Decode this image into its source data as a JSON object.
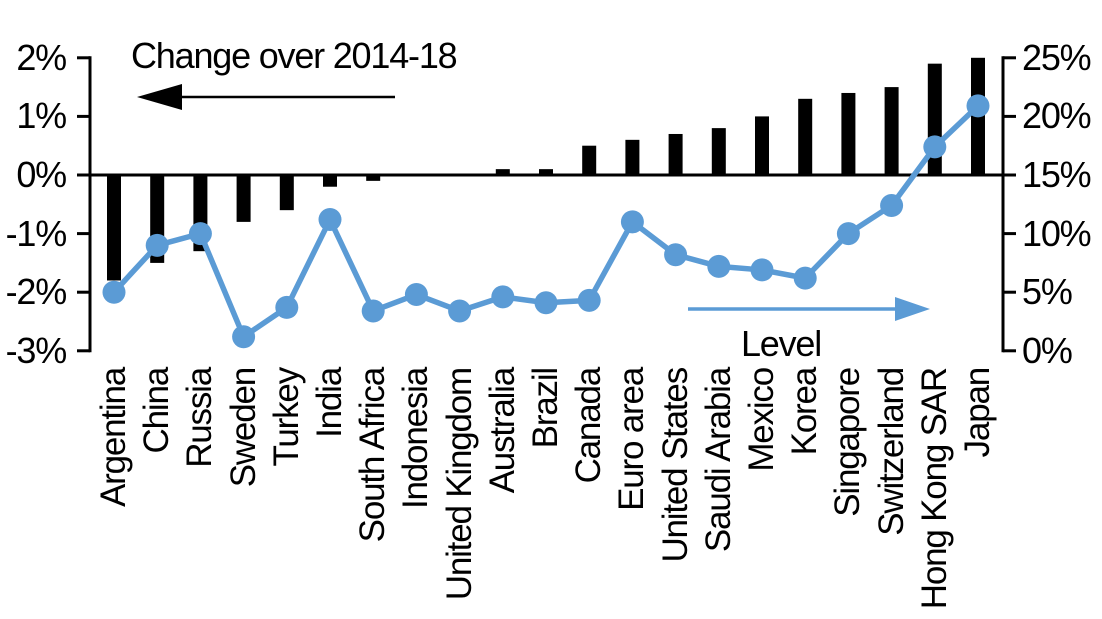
{
  "chart": {
    "title": "Change over 2014-18",
    "line_series_label": "Level",
    "colors": {
      "bar": "#000000",
      "line": "#5B9BD5",
      "text": "#000000"
    }
  },
  "chart_data": {
    "type": "bar+line",
    "title": "Change over 2014-18",
    "categories": [
      "Argentina",
      "China",
      "Russia",
      "Sweden",
      "Turkey",
      "India",
      "South Africa",
      "Indonesia",
      "United Kingdom",
      "Australia",
      "Brazil",
      "Canada",
      "Euro area",
      "United States",
      "Saudi Arabia",
      "Mexico",
      "Korea",
      "Singapore",
      "Switzerland",
      "Hong Kong SAR",
      "Japan"
    ],
    "series": [
      {
        "name": "Change over 2014-18",
        "type": "bar",
        "axis": "left",
        "unit": "%",
        "values": [
          -1.8,
          -1.5,
          -1.3,
          -0.8,
          -0.6,
          -0.2,
          -0.1,
          0.0,
          0.0,
          0.1,
          0.1,
          0.5,
          0.6,
          0.7,
          0.8,
          1.0,
          1.3,
          1.4,
          1.5,
          1.9,
          2.0
        ]
      },
      {
        "name": "Level",
        "type": "line",
        "axis": "right",
        "unit": "%",
        "values": [
          5.0,
          9.0,
          10.0,
          1.2,
          3.7,
          11.2,
          3.4,
          4.8,
          3.4,
          4.6,
          4.1,
          4.3,
          11.0,
          8.2,
          7.2,
          6.9,
          6.2,
          10.0,
          12.4,
          17.4,
          20.9
        ]
      }
    ],
    "left_axis": {
      "tick_labels": [
        "2%",
        "1%",
        "0%",
        "-1%",
        "-2%",
        "-3%"
      ],
      "tick_values": [
        2,
        1,
        0,
        -1,
        -2,
        -3
      ],
      "range": [
        -3,
        2
      ],
      "unit": "%"
    },
    "right_axis": {
      "tick_labels": [
        "25%",
        "20%",
        "15%",
        "10%",
        "5%",
        "0%"
      ],
      "tick_values": [
        25,
        20,
        15,
        10,
        5,
        0
      ],
      "range": [
        0,
        25
      ],
      "unit": "%"
    },
    "grid": false,
    "legend_position": "in-plot arrow annotations",
    "annotations": [
      {
        "text": "Change over 2014-18",
        "arrow_direction": "left",
        "color": "#000000"
      },
      {
        "text": "Level",
        "arrow_direction": "right",
        "color": "#5B9BD5"
      }
    ]
  }
}
